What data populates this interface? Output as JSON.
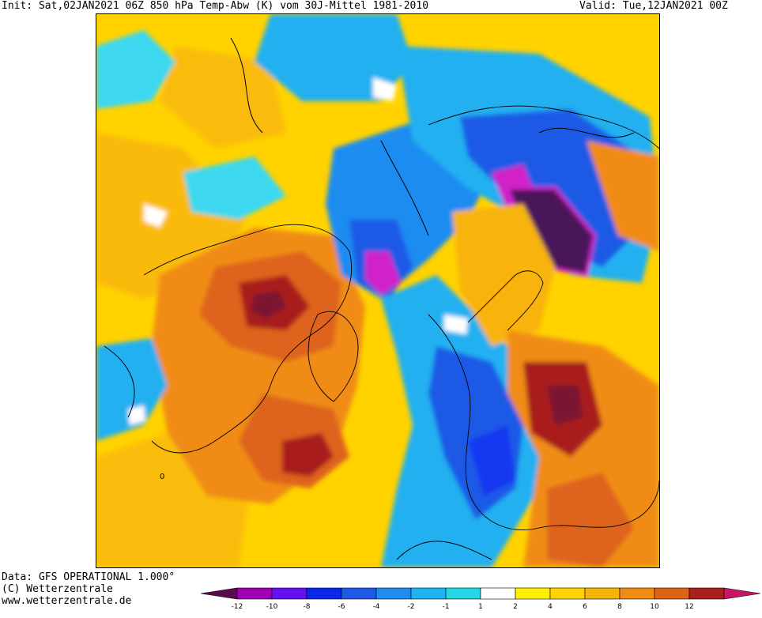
{
  "header": {
    "left": "Init: Sat,02JAN2021 06Z 850 hPa Temp-Abw (K) vom 30J-Mittel 1981-2010",
    "right": "Valid: Tue,12JAN2021 00Z"
  },
  "footer": {
    "line1": "Data: GFS OPERATIONAL 1.000°",
    "line2": "(C) Wetterzentrale",
    "line3": "www.wetterzentrale.de"
  },
  "map": {
    "contour_label": "0",
    "palette": {
      "deep_purple": "#4a1658",
      "magenta": "#d020c8",
      "violet": "#8a14d8",
      "blue_dark": "#1838f0",
      "blue": "#2c6ce8",
      "blue_mid": "#1e90f0",
      "cyan_blue": "#20b0f0",
      "cyan": "#3cd8f0",
      "white": "#ffffff",
      "yellow": "#fff200",
      "gold": "#ffd200",
      "amber": "#f8b40a",
      "orange": "#f08c14",
      "dark_orange": "#de641c",
      "red_brown": "#a81e1e",
      "maroon": "#7a1232"
    }
  },
  "colorbar": {
    "colors": [
      "#5a0a50",
      "#a000b4",
      "#6410f0",
      "#0a28e6",
      "#1e5ae6",
      "#1e8cf0",
      "#1eb4f0",
      "#23d7e6",
      "#ffffff",
      "#fff000",
      "#ffd200",
      "#f5b40a",
      "#f08c14",
      "#dc6414",
      "#aa1e1e",
      "#cc1466"
    ],
    "ticks": [
      "-12",
      "-10",
      "-8",
      "-6",
      "-4",
      "-2",
      "-1",
      "1",
      "2",
      "4",
      "6",
      "8",
      "10",
      "12"
    ]
  }
}
